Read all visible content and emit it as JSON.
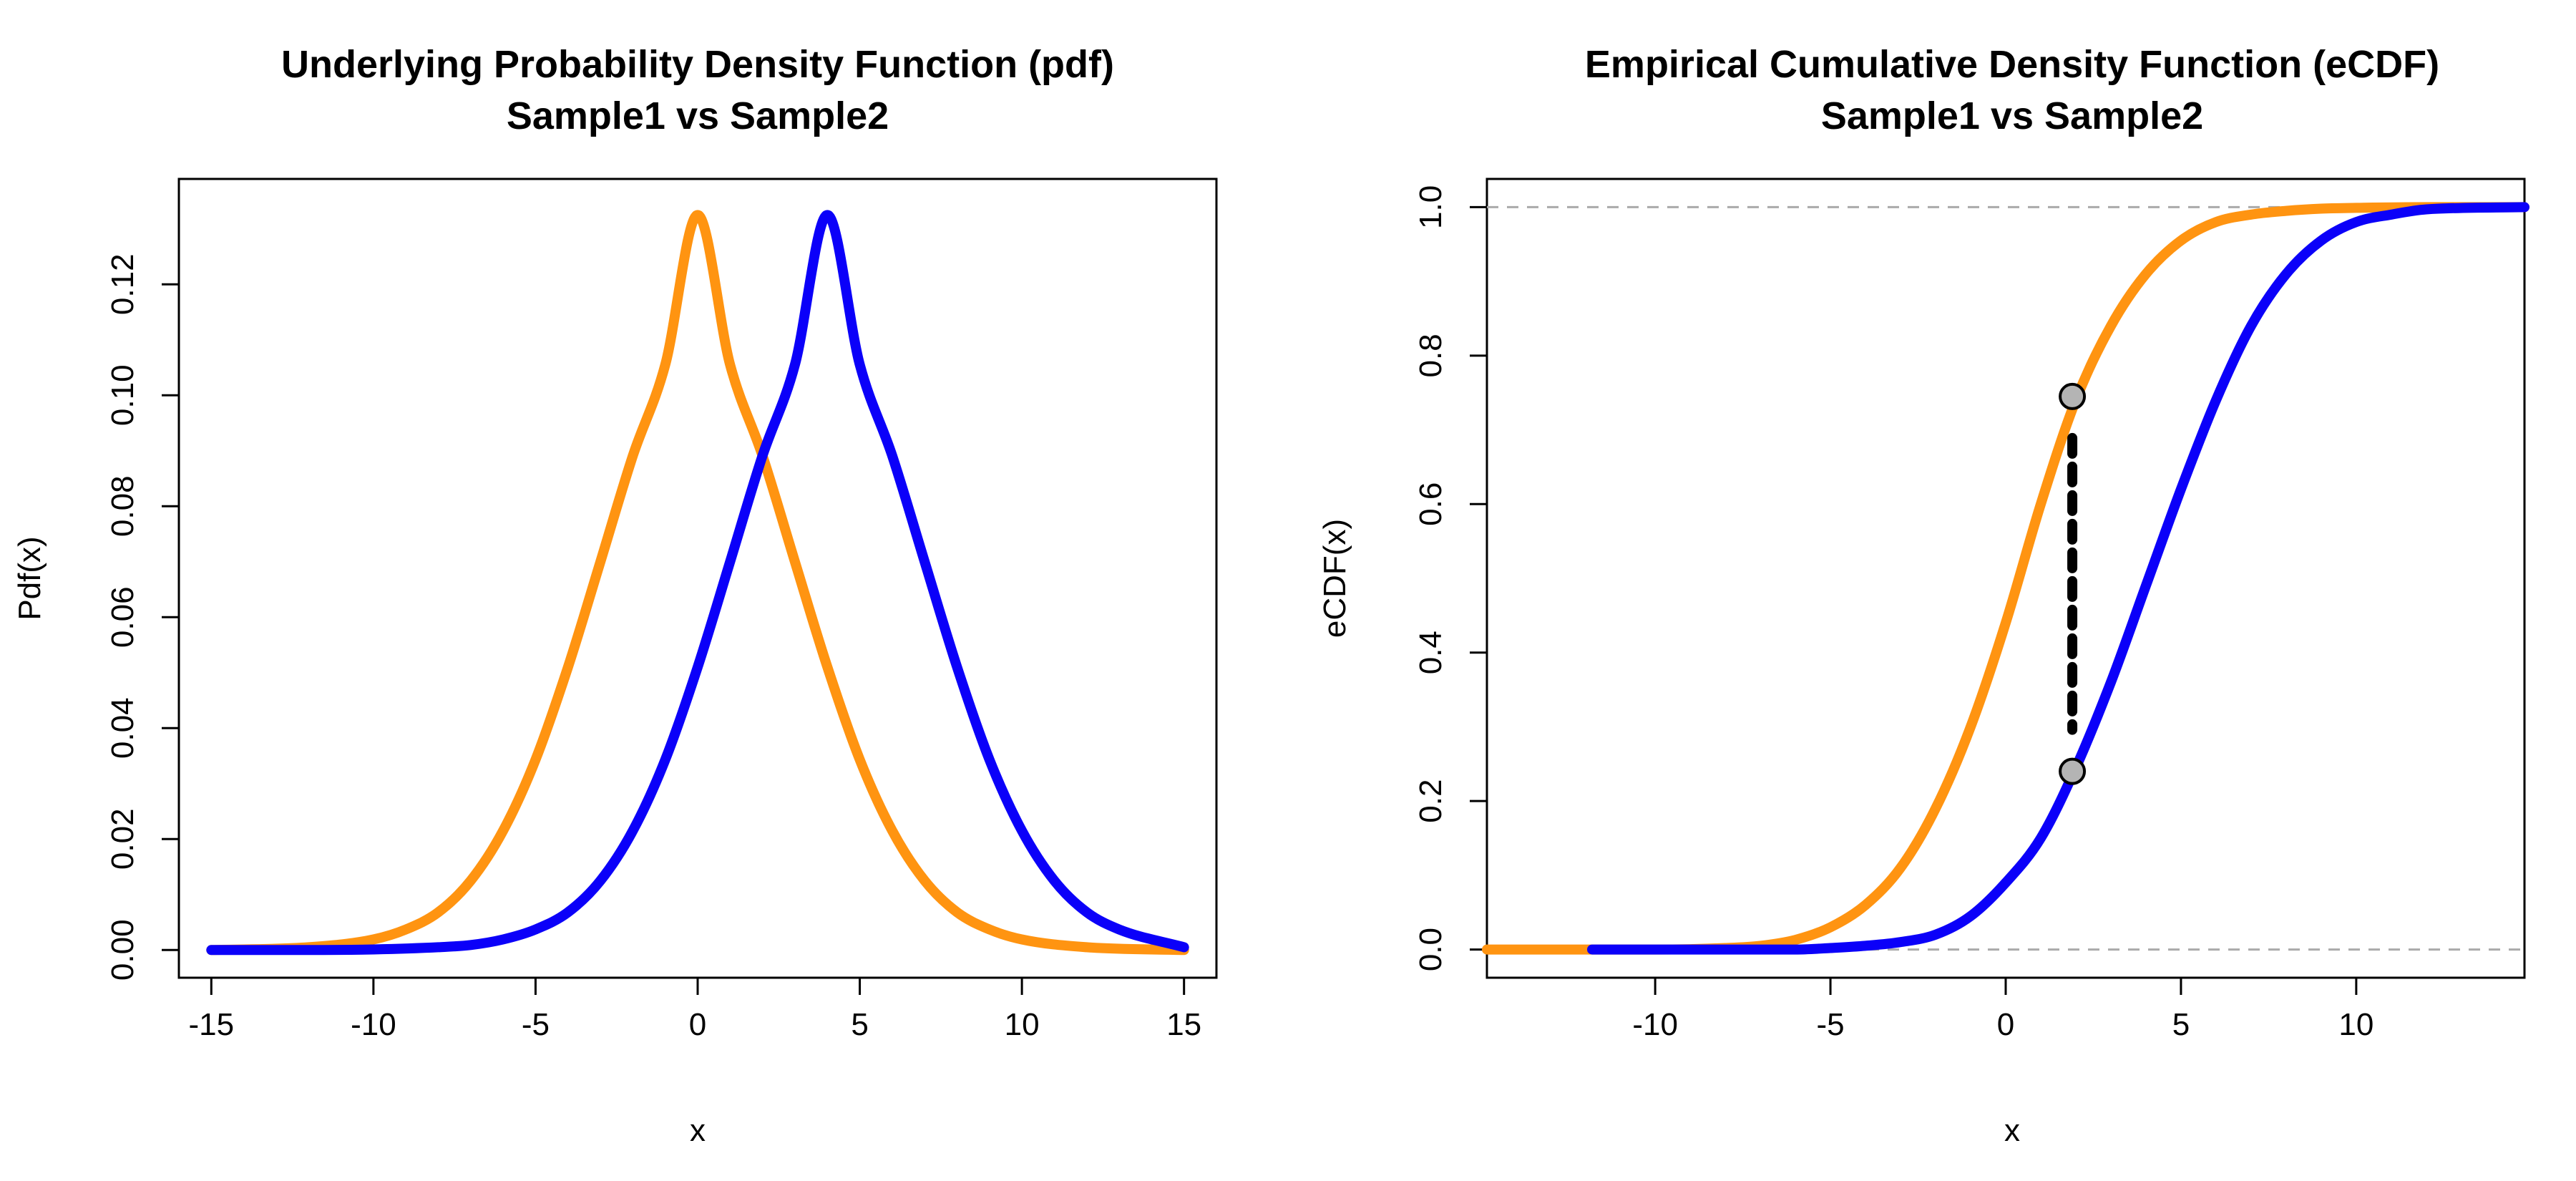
{
  "colors": {
    "sample1": "#FF9411",
    "sample2": "#0B00F9",
    "ref": "#AAAAAA",
    "point_fill": "#B4B4B4"
  },
  "chart_data": [
    {
      "type": "line",
      "title": "Underlying Probability Density Function (pdf)",
      "subtitle": "Sample1 vs Sample2",
      "xlabel": "x",
      "ylabel": "Pdf(x)",
      "xlim": [
        -16,
        16
      ],
      "ylim": [
        -0.005,
        0.139
      ],
      "xticks": [
        -15,
        -10,
        -5,
        0,
        5,
        10,
        15
      ],
      "xtick_labels": [
        "-15",
        "-10",
        "-5",
        "0",
        "5",
        "10",
        "15"
      ],
      "yticks": [
        0.0,
        0.02,
        0.04,
        0.06,
        0.08,
        0.1,
        0.12
      ],
      "ytick_labels": [
        "0.00",
        "0.02",
        "0.04",
        "0.06",
        "0.08",
        "0.10",
        "0.12"
      ],
      "series": [
        {
          "color_key": "sample1",
          "x": [
            -15,
            -12,
            -10,
            -9,
            -8,
            -7,
            -6,
            -5,
            -4,
            -3,
            -2,
            -1,
            0,
            1,
            2,
            3,
            4,
            5,
            6,
            7,
            8,
            9,
            10,
            12,
            15
          ],
          "y": [
            0.0,
            0.0005,
            0.0019,
            0.0037,
            0.0068,
            0.0125,
            0.0215,
            0.0343,
            0.051,
            0.07,
            0.0891,
            0.1055,
            0.1325,
            0.1055,
            0.0891,
            0.07,
            0.051,
            0.0343,
            0.0215,
            0.0125,
            0.0068,
            0.0037,
            0.0019,
            0.0005,
            0.0
          ]
        },
        {
          "color_key": "sample2",
          "x": [
            -15,
            -12,
            -10,
            -8,
            -7,
            -6,
            -5,
            -4,
            -3,
            -2,
            -1,
            0,
            1,
            2,
            3,
            4,
            5,
            6,
            7,
            8,
            9,
            10,
            11,
            12,
            13,
            15
          ],
          "y": [
            0.0,
            0.0,
            0.0001,
            0.0005,
            0.0009,
            0.0019,
            0.0037,
            0.0068,
            0.0125,
            0.0215,
            0.0343,
            0.051,
            0.07,
            0.0891,
            0.1055,
            0.1325,
            0.1055,
            0.0891,
            0.07,
            0.051,
            0.0343,
            0.0215,
            0.0125,
            0.0068,
            0.0037,
            0.0005
          ]
        }
      ]
    },
    {
      "type": "line",
      "title": "Empirical Cumulative Density Function (eCDF)",
      "subtitle": "Sample1 vs Sample2",
      "xlabel": "x",
      "ylabel": "eCDF(x)",
      "xlim": [
        -14.8,
        14.8
      ],
      "ylim": [
        -0.038,
        1.038
      ],
      "xticks": [
        -10,
        -5,
        0,
        5,
        10
      ],
      "xtick_labels": [
        "-10",
        "-5",
        "0",
        "5",
        "10"
      ],
      "yticks": [
        0.0,
        0.2,
        0.4,
        0.6,
        0.8,
        1.0
      ],
      "ytick_labels": [
        "0.0",
        "0.2",
        "0.4",
        "0.6",
        "0.8",
        "1.0"
      ],
      "reference_lines_y": [
        0,
        1
      ],
      "series": [
        {
          "color_key": "sample1",
          "x": [
            -14.8,
            -10,
            -8,
            -7,
            -6,
            -5,
            -4,
            -3,
            -2,
            -1,
            0,
            1,
            2,
            3,
            4,
            5,
            6,
            7,
            8,
            9,
            10,
            12,
            14.8
          ],
          "y": [
            0.0,
            0.0,
            0.002,
            0.005,
            0.013,
            0.03,
            0.06,
            0.11,
            0.19,
            0.3,
            0.44,
            0.6,
            0.74,
            0.84,
            0.91,
            0.955,
            0.98,
            0.99,
            0.995,
            0.998,
            0.999,
            1.0,
            1.0
          ]
        },
        {
          "color_key": "sample2",
          "x": [
            -11.8,
            -6,
            -5,
            -4,
            -3,
            -2,
            -1,
            0,
            1,
            2,
            3,
            4,
            5,
            6,
            7,
            8,
            9,
            10,
            11,
            12,
            14.8
          ],
          "y": [
            0.0,
            0.0,
            0.002,
            0.005,
            0.01,
            0.02,
            0.045,
            0.09,
            0.15,
            0.245,
            0.36,
            0.49,
            0.62,
            0.74,
            0.84,
            0.91,
            0.955,
            0.98,
            0.99,
            0.997,
            1.0
          ]
        }
      ],
      "ks_statistic": {
        "x": 1.9,
        "y_low": 0.24,
        "y_high": 0.745
      }
    }
  ]
}
